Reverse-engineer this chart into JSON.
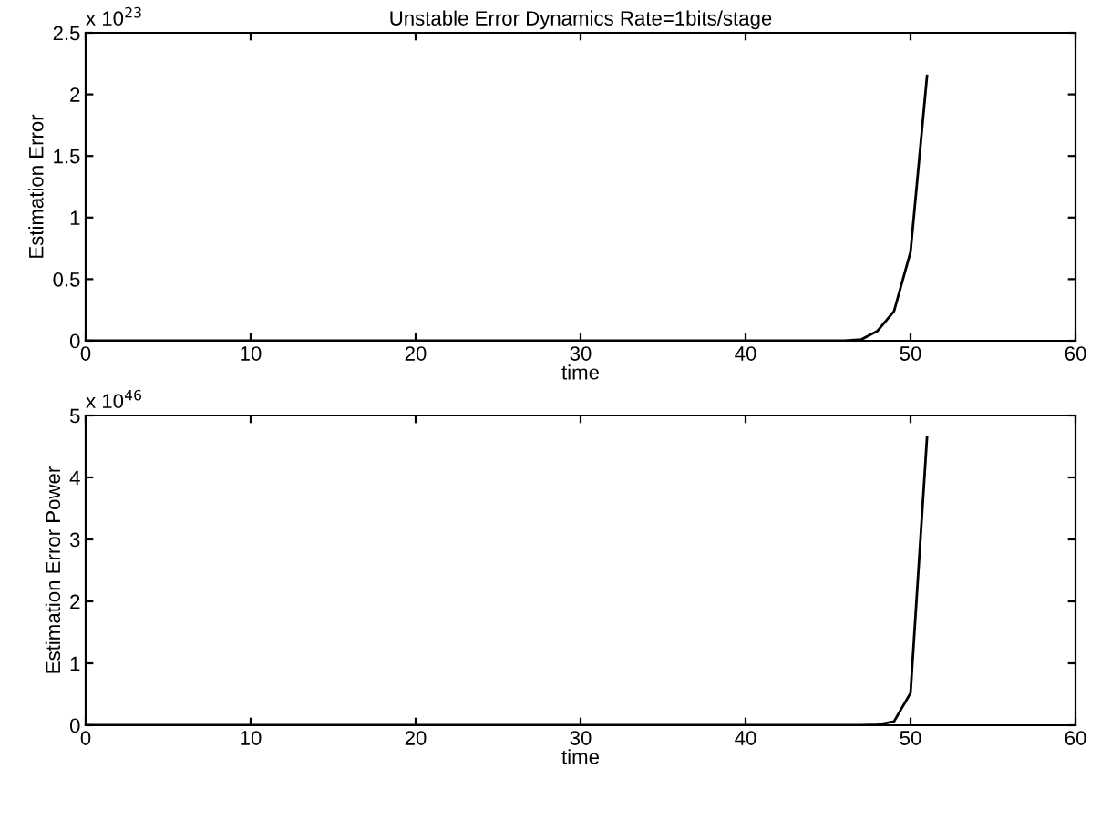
{
  "chart_data": [
    {
      "type": "line",
      "title": "Unstable Error Dynamics Rate=1bits/stage",
      "xlabel": "time",
      "ylabel": "Estimation Error",
      "annotations": [
        "x 10$^{23}$"
      ],
      "series": [
        {
          "color": "#000000",
          "x": [
            0,
            44,
            45,
            46,
            47,
            48,
            49,
            50,
            51
          ],
          "values": [
            0,
            0,
            0,
            0,
            0.01,
            0.08,
            0.24,
            0.72,
            2.15
          ]
        }
      ],
      "xlim": [
        0,
        60
      ],
      "xticks": [
        0,
        10,
        20,
        30,
        40,
        50,
        60
      ],
      "ylim": [
        0,
        2.5
      ],
      "yticks": [
        0,
        0.5,
        1,
        1.5,
        2,
        2.5
      ],
      "grid": false,
      "legend": false
    },
    {
      "type": "line",
      "xlabel": "time",
      "ylabel": "Estimation Error Power",
      "annotations": [
        "x 10$^{46}$"
      ],
      "series": [
        {
          "color": "#000000",
          "x": [
            0,
            47,
            48,
            49,
            50,
            51
          ],
          "values": [
            0,
            0,
            0.01,
            0.06,
            0.52,
            4.65
          ]
        }
      ],
      "xlim": [
        0,
        60
      ],
      "xticks": [
        0,
        10,
        20,
        30,
        40,
        50,
        60
      ],
      "ylim": [
        0,
        5
      ],
      "yticks": [
        0,
        1,
        2,
        3,
        4,
        5
      ],
      "grid": false,
      "legend": false
    }
  ]
}
